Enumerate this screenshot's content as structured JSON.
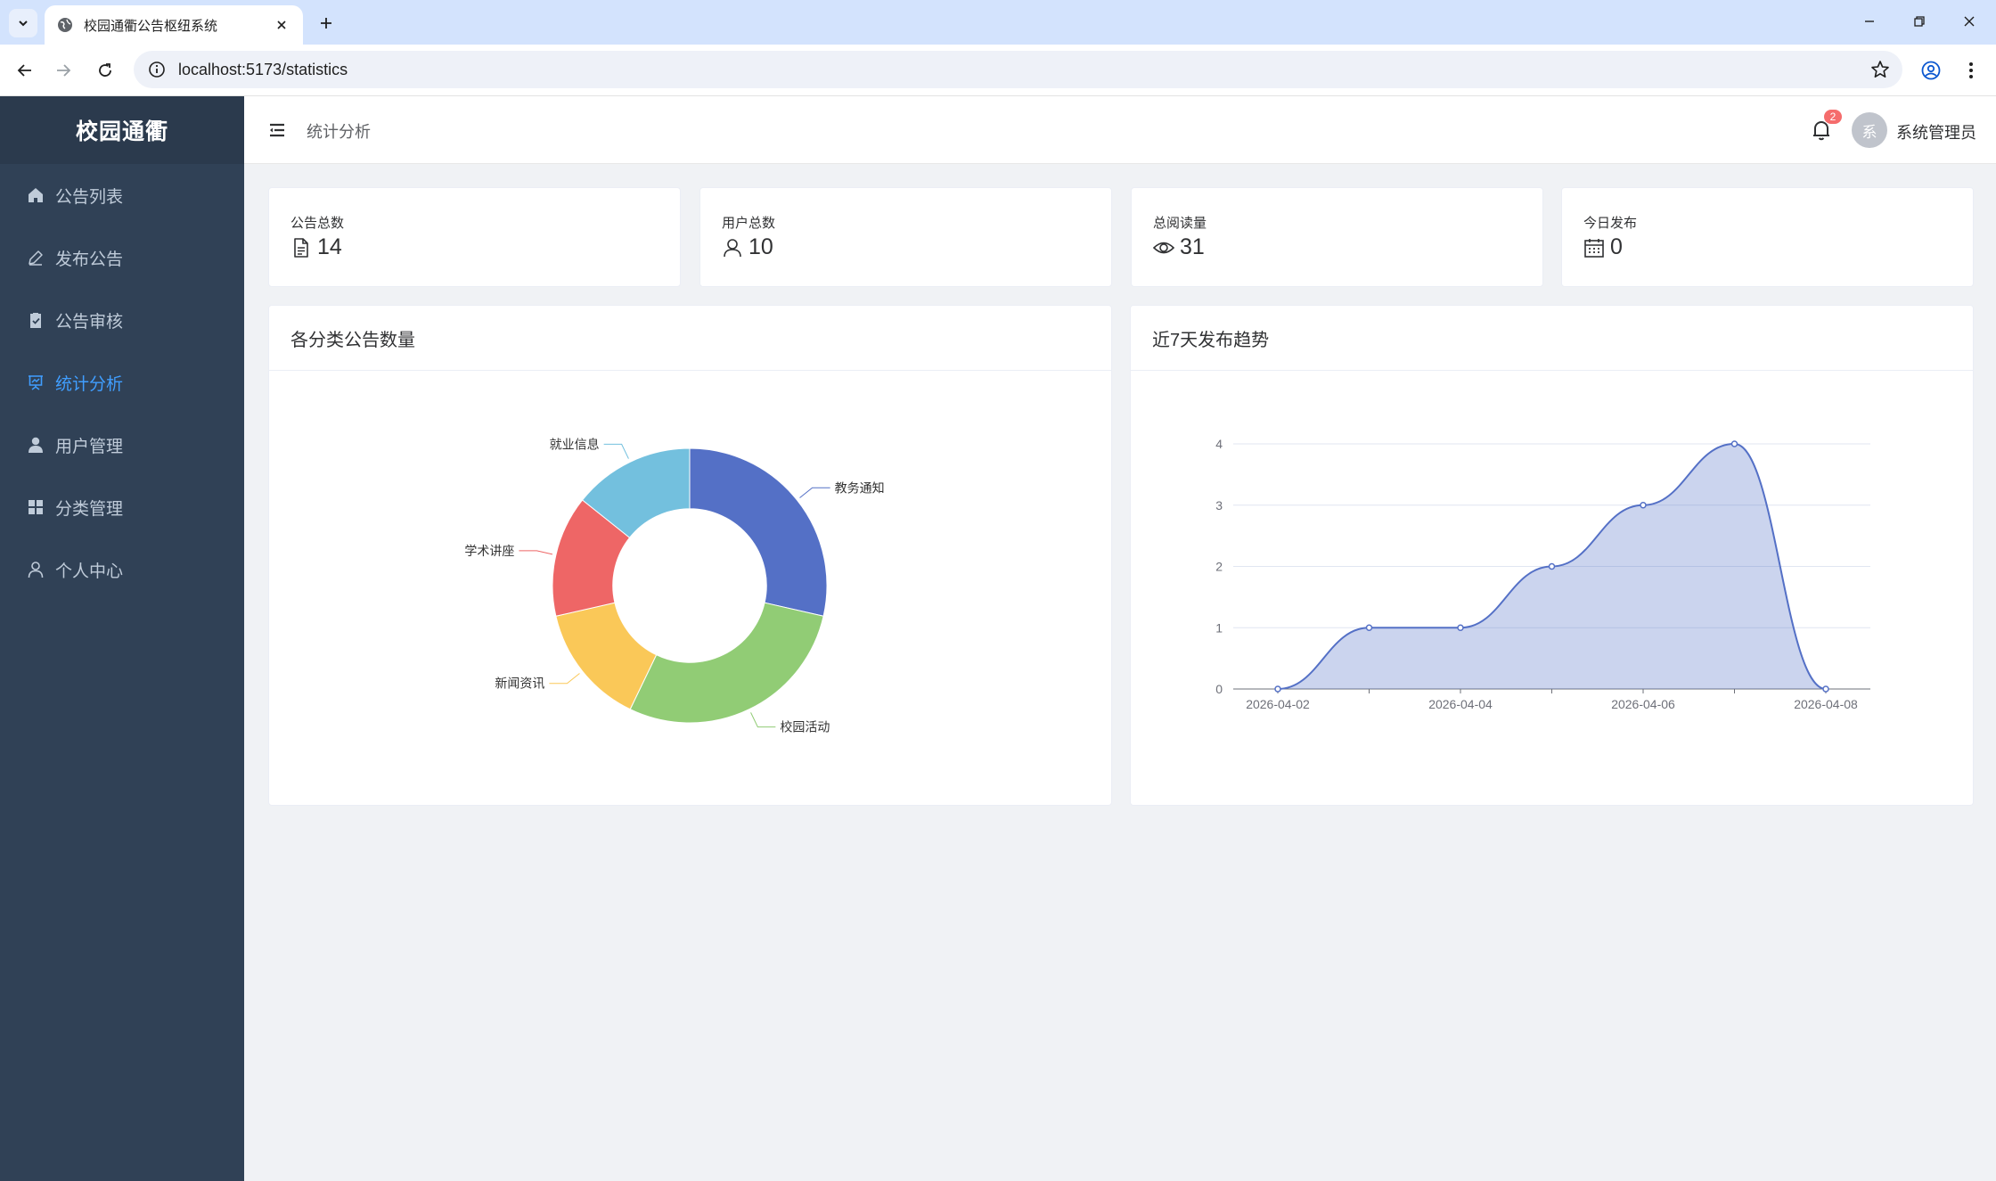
{
  "browser": {
    "tab_title": "校园通衢公告枢纽系统",
    "url": "localhost:5173/statistics"
  },
  "app": {
    "logo": "校园通衢",
    "breadcrumb": "统计分析",
    "notification_count": "2",
    "avatar_text": "系",
    "username": "系统管理员"
  },
  "sidebar": {
    "items": [
      {
        "label": "公告列表",
        "icon": "home-icon",
        "active": false
      },
      {
        "label": "发布公告",
        "icon": "edit-icon",
        "active": false
      },
      {
        "label": "公告审核",
        "icon": "clipboard-check-icon",
        "active": false
      },
      {
        "label": "统计分析",
        "icon": "presentation-chart-icon",
        "active": true
      },
      {
        "label": "用户管理",
        "icon": "user-filled-icon",
        "active": false
      },
      {
        "label": "分类管理",
        "icon": "grid-icon",
        "active": false
      },
      {
        "label": "个人中心",
        "icon": "user-outline-icon",
        "active": false
      }
    ]
  },
  "stats": [
    {
      "label": "公告总数",
      "value": "14",
      "icon": "document-icon"
    },
    {
      "label": "用户总数",
      "value": "10",
      "icon": "user-icon"
    },
    {
      "label": "总阅读量",
      "value": "31",
      "icon": "eye-icon"
    },
    {
      "label": "今日发布",
      "value": "0",
      "icon": "calendar-icon"
    }
  ],
  "colors": {
    "accent": "#409eff",
    "sidebar": "#304156",
    "line": "#5470c6"
  },
  "chart_data": [
    {
      "type": "pie",
      "title": "各分类公告数量",
      "inner_radius_ratio": 0.56,
      "slices": [
        {
          "name": "教务通知",
          "value": 4,
          "color": "#5470c6"
        },
        {
          "name": "校园活动",
          "value": 4,
          "color": "#91cc75"
        },
        {
          "name": "新闻资讯",
          "value": 2,
          "color": "#fac858"
        },
        {
          "name": "学术讲座",
          "value": 2,
          "color": "#ee6666"
        },
        {
          "name": "就业信息",
          "value": 2,
          "color": "#73c0de"
        }
      ]
    },
    {
      "type": "area",
      "title": "近7天发布趋势",
      "x": [
        "2026-04-02",
        "2026-04-03",
        "2026-04-04",
        "2026-04-05",
        "2026-04-06",
        "2026-04-07",
        "2026-04-08"
      ],
      "x_tick_labels": [
        "2026-04-02",
        "2026-04-04",
        "2026-04-06",
        "2026-04-08"
      ],
      "values": [
        0,
        1,
        1,
        2,
        3,
        4,
        0
      ],
      "ylim": [
        0,
        4
      ],
      "y_ticks": [
        "0",
        "1",
        "2",
        "3",
        "4"
      ],
      "smooth": true,
      "grid": true
    }
  ]
}
